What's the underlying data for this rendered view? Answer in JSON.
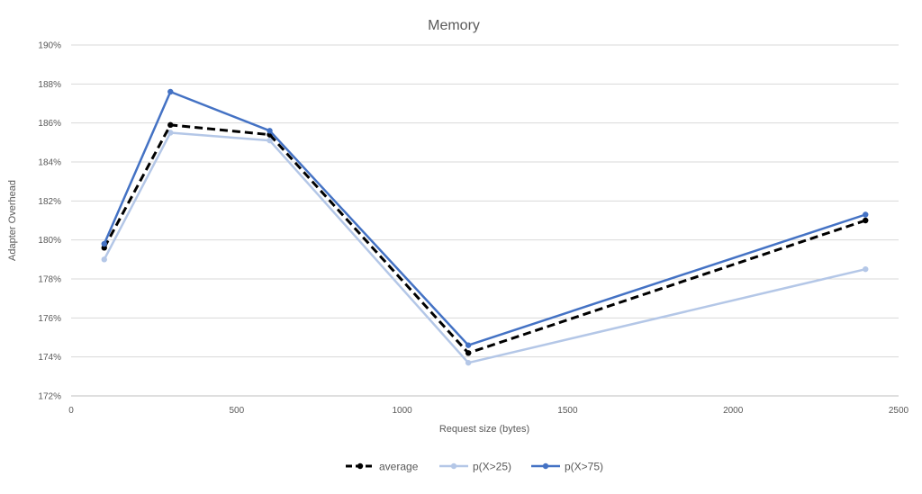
{
  "chart_data": {
    "type": "line",
    "title": "Memory",
    "xlabel": "Request size (bytes)",
    "ylabel": "Adapter Overhead",
    "xlim": [
      0,
      2500
    ],
    "ylim": [
      172,
      190
    ],
    "x_ticks": [
      "0",
      "500",
      "1000",
      "1500",
      "2000",
      "2500"
    ],
    "y_ticks": [
      "172%",
      "174%",
      "176%",
      "178%",
      "180%",
      "182%",
      "184%",
      "186%",
      "188%",
      "190%"
    ],
    "grid": true,
    "legend_position": "bottom",
    "x": [
      100,
      300,
      600,
      1200,
      2400
    ],
    "series": [
      {
        "name": "average",
        "values": [
          179.6,
          185.9,
          185.4,
          174.2,
          181.0
        ],
        "color": "#000000",
        "dashed": true
      },
      {
        "name": "p(X>25)",
        "values": [
          179.0,
          185.5,
          185.1,
          173.7,
          178.5
        ],
        "color": "#b4c7e7",
        "dashed": false
      },
      {
        "name": "p(X>75)",
        "values": [
          179.8,
          187.6,
          185.6,
          174.6,
          181.3
        ],
        "color": "#4472c4",
        "dashed": false
      }
    ]
  }
}
